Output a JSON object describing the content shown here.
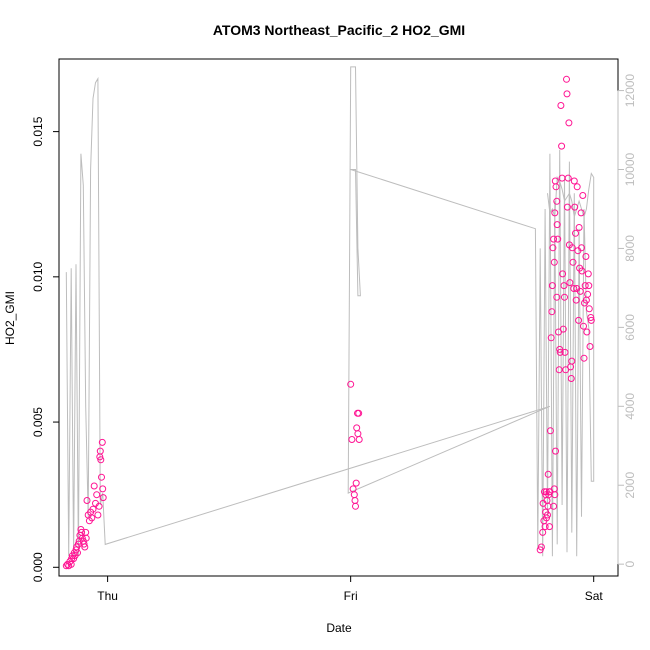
{
  "chart_data": {
    "type": "scatter",
    "title": "ATOM3 Northeast_Pacific_2 HO2_GMI",
    "xlabel": "Date",
    "ylabel": "HO2_GMI",
    "x_ticks": [
      {
        "label": "Thu",
        "value": 0
      },
      {
        "label": "Fri",
        "value": 1
      },
      {
        "label": "Sat",
        "value": 2
      }
    ],
    "y_ticks": [
      "0.000",
      "0.005",
      "0.010",
      "0.015"
    ],
    "y_tick_values": [
      0.0,
      0.005,
      0.01,
      0.015
    ],
    "ylim": [
      -0.0003,
      0.0175
    ],
    "y2_ticks": [
      "0",
      "2000",
      "4000",
      "6000",
      "8000",
      "10000",
      "12000"
    ],
    "y2_tick_values": [
      0,
      2000,
      4000,
      6000,
      8000,
      10000,
      12000
    ],
    "y2lim": [
      -300,
      12800
    ],
    "xlim": [
      -0.2,
      2.1
    ],
    "colors": {
      "points": "#ff1493",
      "line": "#bdbdbd",
      "axis": "#000000",
      "axis_right": "#bdbdbd"
    },
    "series": [
      {
        "type": "scatter",
        "axis": "left",
        "points": [
          [
            -0.17,
            5e-05
          ],
          [
            -0.165,
            0.0001
          ],
          [
            -0.16,
            5e-05
          ],
          [
            -0.155,
            0.0002
          ],
          [
            -0.15,
            0.0001
          ],
          [
            -0.148,
            0.0003
          ],
          [
            -0.145,
            0.0004
          ],
          [
            -0.14,
            0.0003
          ],
          [
            -0.137,
            0.0005
          ],
          [
            -0.134,
            0.0004
          ],
          [
            -0.13,
            0.0006
          ],
          [
            -0.127,
            0.0007
          ],
          [
            -0.124,
            0.0005
          ],
          [
            -0.12,
            0.0008
          ],
          [
            -0.117,
            0.0009
          ],
          [
            -0.114,
            0.0011
          ],
          [
            -0.11,
            0.0013
          ],
          [
            -0.107,
            0.0012
          ],
          [
            -0.104,
            0.001
          ],
          [
            -0.1,
            0.0009
          ],
          [
            -0.097,
            0.0008
          ],
          [
            -0.094,
            0.0007
          ],
          [
            -0.09,
            0.0012
          ],
          [
            -0.088,
            0.001
          ],
          [
            -0.085,
            0.0023
          ],
          [
            -0.08,
            0.0018
          ],
          [
            -0.075,
            0.0016
          ],
          [
            -0.07,
            0.0019
          ],
          [
            -0.065,
            0.0017
          ],
          [
            -0.06,
            0.002
          ],
          [
            -0.055,
            0.0028
          ],
          [
            -0.05,
            0.0022
          ],
          [
            -0.045,
            0.0025
          ],
          [
            -0.04,
            0.0018
          ],
          [
            -0.035,
            0.0021
          ],
          [
            -0.032,
            0.0038
          ],
          [
            -0.03,
            0.004
          ],
          [
            -0.028,
            0.0037
          ],
          [
            -0.025,
            0.0031
          ],
          [
            -0.022,
            0.0043
          ],
          [
            -0.02,
            0.0027
          ],
          [
            -0.018,
            0.0024
          ],
          [
            1.0,
            0.0063
          ],
          [
            1.005,
            0.0044
          ],
          [
            1.01,
            0.0027
          ],
          [
            1.015,
            0.0025
          ],
          [
            1.018,
            0.0023
          ],
          [
            1.02,
            0.0021
          ],
          [
            1.023,
            0.0029
          ],
          [
            1.025,
            0.0048
          ],
          [
            1.028,
            0.0053
          ],
          [
            1.03,
            0.0046
          ],
          [
            1.033,
            0.0053
          ],
          [
            1.035,
            0.0044
          ],
          [
            1.78,
            0.0006
          ],
          [
            1.785,
            0.0007
          ],
          [
            1.79,
            0.0012
          ],
          [
            1.795,
            0.0016
          ],
          [
            1.8,
            0.0014
          ],
          [
            1.802,
            0.0019
          ],
          [
            1.805,
            0.0026
          ],
          [
            1.808,
            0.0023
          ],
          [
            1.81,
            0.0018
          ],
          [
            1.812,
            0.0021
          ],
          [
            1.815,
            0.0025
          ],
          [
            1.818,
            0.0014
          ],
          [
            1.82,
            0.0026
          ],
          [
            1.822,
            0.0047
          ],
          [
            1.825,
            0.0079
          ],
          [
            1.828,
            0.0088
          ],
          [
            1.83,
            0.0097
          ],
          [
            1.832,
            0.011
          ],
          [
            1.835,
            0.0113
          ],
          [
            1.838,
            0.0105
          ],
          [
            1.84,
            0.0122
          ],
          [
            1.842,
            0.0133
          ],
          [
            1.845,
            0.0131
          ],
          [
            1.848,
            0.0126
          ],
          [
            1.85,
            0.0118
          ],
          [
            1.852,
            0.0113
          ],
          [
            1.855,
            0.0081
          ],
          [
            1.858,
            0.0068
          ],
          [
            1.86,
            0.0075
          ],
          [
            1.862,
            0.0074
          ],
          [
            1.865,
            0.0159
          ],
          [
            1.868,
            0.0145
          ],
          [
            1.87,
            0.0134
          ],
          [
            1.872,
            0.0101
          ],
          [
            1.875,
            0.0082
          ],
          [
            1.878,
            0.0097
          ],
          [
            1.88,
            0.0093
          ],
          [
            1.882,
            0.0074
          ],
          [
            1.885,
            0.0068
          ],
          [
            1.888,
            0.0168
          ],
          [
            1.89,
            0.0163
          ],
          [
            1.892,
            0.0124
          ],
          [
            1.895,
            0.0134
          ],
          [
            1.898,
            0.0153
          ],
          [
            1.9,
            0.0111
          ],
          [
            1.902,
            0.0098
          ],
          [
            1.905,
            0.0069
          ],
          [
            1.908,
            0.0065
          ],
          [
            1.91,
            0.0071
          ],
          [
            1.912,
            0.011
          ],
          [
            1.915,
            0.0105
          ],
          [
            1.918,
            0.0096
          ],
          [
            1.92,
            0.0133
          ],
          [
            1.922,
            0.0124
          ],
          [
            1.925,
            0.0115
          ],
          [
            1.928,
            0.0092
          ],
          [
            1.93,
            0.0096
          ],
          [
            1.932,
            0.0131
          ],
          [
            1.935,
            0.0109
          ],
          [
            1.938,
            0.0085
          ],
          [
            1.94,
            0.0117
          ],
          [
            1.942,
            0.0103
          ],
          [
            1.945,
            0.0095
          ],
          [
            1.948,
            0.0122
          ],
          [
            1.95,
            0.011
          ],
          [
            1.952,
            0.0102
          ],
          [
            1.955,
            0.0128
          ],
          [
            1.958,
            0.0083
          ],
          [
            1.96,
            0.0072
          ],
          [
            1.962,
            0.0091
          ],
          [
            1.965,
            0.0097
          ],
          [
            1.968,
            0.0107
          ],
          [
            1.97,
            0.0092
          ],
          [
            1.972,
            0.0081
          ],
          [
            1.975,
            0.0094
          ],
          [
            1.978,
            0.0101
          ],
          [
            1.98,
            0.0097
          ],
          [
            1.982,
            0.0089
          ],
          [
            1.985,
            0.0076
          ],
          [
            1.988,
            0.0086
          ],
          [
            1.99,
            0.0085
          ],
          [
            1.792,
            0.0022
          ],
          [
            1.797,
            0.0026
          ],
          [
            1.803,
            0.0025
          ],
          [
            1.806,
            0.0017
          ],
          [
            1.813,
            0.0032
          ],
          [
            1.817,
            0.0026
          ],
          [
            1.835,
            0.0021
          ],
          [
            1.838,
            0.0027
          ],
          [
            1.84,
            0.0025
          ],
          [
            1.843,
            0.004
          ],
          [
            1.848,
            0.0093
          ]
        ]
      },
      {
        "type": "line",
        "axis": "right",
        "points": [
          [
            -0.17,
            7400
          ],
          [
            -0.16,
            200
          ],
          [
            -0.15,
            7500
          ],
          [
            -0.14,
            200
          ],
          [
            -0.13,
            7600
          ],
          [
            -0.12,
            200
          ],
          [
            -0.11,
            10400
          ],
          [
            -0.1,
            9600
          ],
          [
            -0.09,
            4000
          ],
          [
            -0.08,
            1200
          ],
          [
            -0.07,
            10000
          ],
          [
            -0.06,
            11800
          ],
          [
            -0.05,
            12200
          ],
          [
            -0.04,
            12300
          ],
          [
            -0.03,
            1500
          ],
          [
            -0.02,
            1800
          ],
          [
            -0.01,
            500
          ],
          [
            1.82,
            4000
          ],
          [
            0.99,
            1800
          ],
          [
            1.0,
            12600
          ],
          [
            1.02,
            12600
          ],
          [
            1.03,
            8000
          ],
          [
            1.04,
            6800
          ],
          [
            1.03,
            6800
          ],
          [
            1.02,
            10000
          ],
          [
            1.0,
            10000
          ],
          [
            1.76,
            8500
          ],
          [
            1.77,
            400
          ],
          [
            1.78,
            8000
          ],
          [
            1.79,
            200
          ],
          [
            1.8,
            9000
          ],
          [
            1.81,
            1200
          ],
          [
            1.82,
            10400
          ],
          [
            1.83,
            200
          ],
          [
            1.84,
            9200
          ],
          [
            1.85,
            500
          ],
          [
            1.86,
            10500
          ],
          [
            1.87,
            1500
          ],
          [
            1.88,
            9800
          ],
          [
            1.89,
            300
          ],
          [
            1.9,
            10200
          ],
          [
            1.91,
            800
          ],
          [
            1.92,
            9400
          ],
          [
            1.93,
            200
          ],
          [
            1.94,
            8500
          ],
          [
            1.95,
            1200
          ],
          [
            1.96,
            9000
          ],
          [
            1.97,
            6400
          ],
          [
            1.98,
            6000
          ],
          [
            1.99,
            2100
          ],
          [
            2.0,
            2100
          ],
          [
            2.0,
            9800
          ],
          [
            1.99,
            9900
          ],
          [
            1.98,
            9500
          ],
          [
            1.97,
            9000
          ],
          [
            1.96,
            8800
          ],
          [
            1.95,
            9000
          ],
          [
            1.94,
            9200
          ],
          [
            1.93,
            9000
          ],
          [
            1.92,
            8800
          ],
          [
            1.91,
            9200
          ],
          [
            1.9,
            9400
          ],
          [
            1.89,
            9300
          ],
          [
            1.88,
            9200
          ],
          [
            1.87,
            9500
          ],
          [
            1.86,
            9700
          ],
          [
            1.85,
            9800
          ],
          [
            1.84,
            8800
          ],
          [
            1.83,
            9000
          ],
          [
            1.82,
            8900
          ],
          [
            1.81,
            9400
          ]
        ]
      }
    ],
    "grid": false,
    "legend": "none"
  }
}
